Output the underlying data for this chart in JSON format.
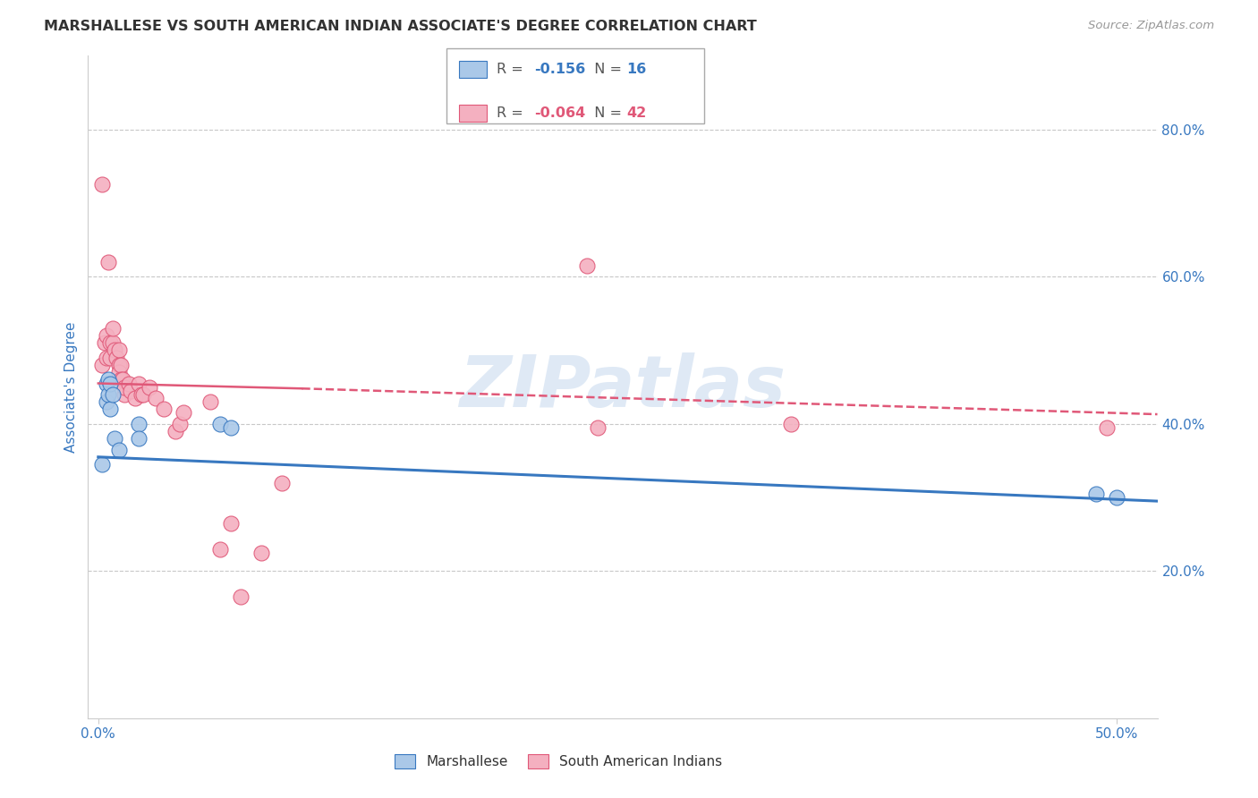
{
  "title": "MARSHALLESE VS SOUTH AMERICAN INDIAN ASSOCIATE'S DEGREE CORRELATION CHART",
  "source": "Source: ZipAtlas.com",
  "xlabel_ticks": [
    "0.0%",
    "50.0%"
  ],
  "xlabel_vals": [
    0.0,
    0.5
  ],
  "ylabel": "Associate's Degree",
  "ylabel_ticks": [
    "20.0%",
    "40.0%",
    "60.0%",
    "80.0%"
  ],
  "ylabel_vals": [
    0.2,
    0.4,
    0.6,
    0.8
  ],
  "xlim": [
    -0.005,
    0.52
  ],
  "ylim": [
    0.0,
    0.9
  ],
  "watermark": "ZIPatlas",
  "blue_R": "-0.156",
  "blue_N": "16",
  "pink_R": "-0.064",
  "pink_N": "42",
  "blue_color": "#aac8e8",
  "pink_color": "#f4b0c0",
  "blue_line_color": "#3878c0",
  "pink_line_color": "#e05878",
  "blue_scatter_x": [
    0.002,
    0.004,
    0.004,
    0.005,
    0.005,
    0.006,
    0.006,
    0.007,
    0.008,
    0.01,
    0.02,
    0.02,
    0.06,
    0.065,
    0.49,
    0.5
  ],
  "blue_scatter_y": [
    0.345,
    0.455,
    0.43,
    0.46,
    0.44,
    0.42,
    0.455,
    0.44,
    0.38,
    0.365,
    0.4,
    0.38,
    0.4,
    0.395,
    0.305,
    0.3
  ],
  "pink_scatter_x": [
    0.002,
    0.002,
    0.003,
    0.004,
    0.004,
    0.005,
    0.006,
    0.006,
    0.007,
    0.007,
    0.008,
    0.009,
    0.01,
    0.01,
    0.01,
    0.011,
    0.011,
    0.012,
    0.013,
    0.013,
    0.015,
    0.016,
    0.018,
    0.02,
    0.021,
    0.022,
    0.025,
    0.028,
    0.032,
    0.038,
    0.04,
    0.042,
    0.055,
    0.06,
    0.065,
    0.07,
    0.08,
    0.09,
    0.24,
    0.245,
    0.34,
    0.495
  ],
  "pink_scatter_y": [
    0.725,
    0.48,
    0.51,
    0.49,
    0.52,
    0.62,
    0.51,
    0.49,
    0.51,
    0.53,
    0.5,
    0.49,
    0.48,
    0.5,
    0.47,
    0.48,
    0.46,
    0.46,
    0.44,
    0.45,
    0.455,
    0.445,
    0.435,
    0.455,
    0.44,
    0.44,
    0.45,
    0.435,
    0.42,
    0.39,
    0.4,
    0.415,
    0.43,
    0.23,
    0.265,
    0.165,
    0.225,
    0.32,
    0.615,
    0.395,
    0.4,
    0.395
  ],
  "blue_line_x0": 0.0,
  "blue_line_x1": 0.52,
  "blue_line_y0": 0.355,
  "blue_line_y1": 0.295,
  "pink_line_solid_x0": 0.0,
  "pink_line_solid_x1": 0.1,
  "pink_line_solid_y0": 0.455,
  "pink_line_solid_y1": 0.448,
  "pink_line_dash_x0": 0.1,
  "pink_line_dash_x1": 0.52,
  "pink_line_dash_y0": 0.448,
  "pink_line_dash_y1": 0.413,
  "legend_label_blue": "Marshallese",
  "legend_label_pink": "South American Indians",
  "grid_color": "#c8c8c8",
  "bg_color": "#ffffff",
  "title_color": "#333333",
  "axis_label_color": "#3878c0",
  "tick_color": "#3878c0"
}
